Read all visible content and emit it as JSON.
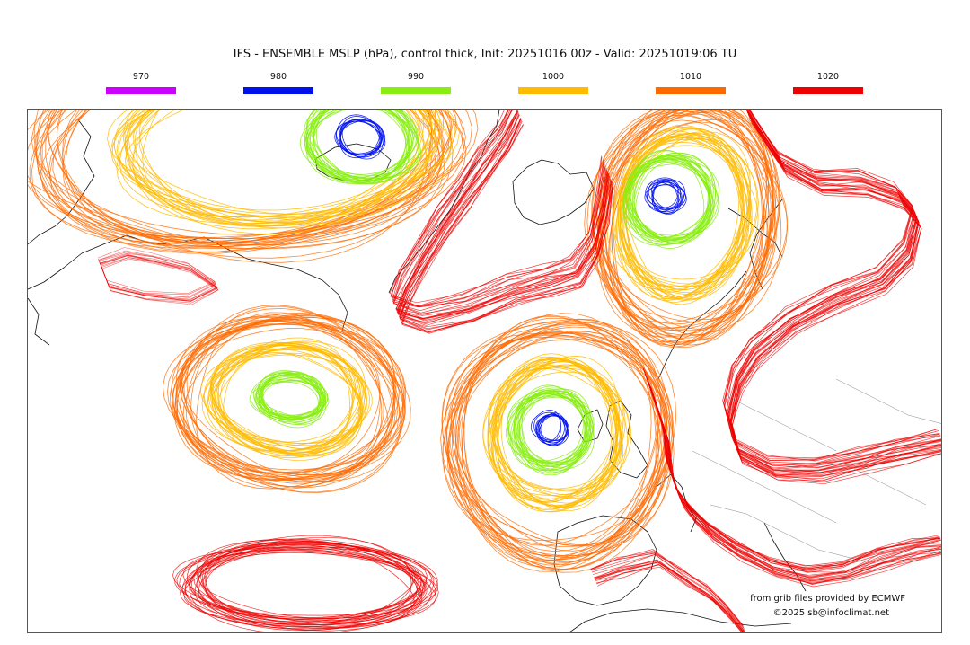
{
  "title": "IFS - ENSEMBLE MSLP (hPa), control thick, Init: 20251016 00z - Valid: 20251019:06 TU",
  "legend": [
    {
      "label": "970",
      "color": "#cc00ff"
    },
    {
      "label": "980",
      "color": "#0011ee"
    },
    {
      "label": "990",
      "color": "#88ee11"
    },
    {
      "label": "1000",
      "color": "#ffbb00"
    },
    {
      "label": "1010",
      "color": "#ff6a00"
    },
    {
      "label": "1020",
      "color": "#ee0000"
    }
  ],
  "credit": "from grib files provided by ECMWF",
  "copyright": "©2025 sb@infoclimat.net",
  "coastline_color": "#111111",
  "border_color": "#888888",
  "systems": [
    {
      "kind": "low",
      "min_level": 980,
      "location": "Iceland"
    },
    {
      "kind": "low",
      "min_level": 980,
      "location": "Svalbard / Barents Sea"
    },
    {
      "kind": "low",
      "min_level": 990,
      "location": "Mid Atlantic"
    },
    {
      "kind": "low",
      "min_level": 980,
      "location": "West of Ireland"
    },
    {
      "kind": "high",
      "max_level": 1020,
      "location": "Greenland"
    },
    {
      "kind": "high",
      "max_level": 1020,
      "location": "Azores"
    },
    {
      "kind": "high",
      "max_level": 1020,
      "location": "Continental Europe"
    }
  ]
}
